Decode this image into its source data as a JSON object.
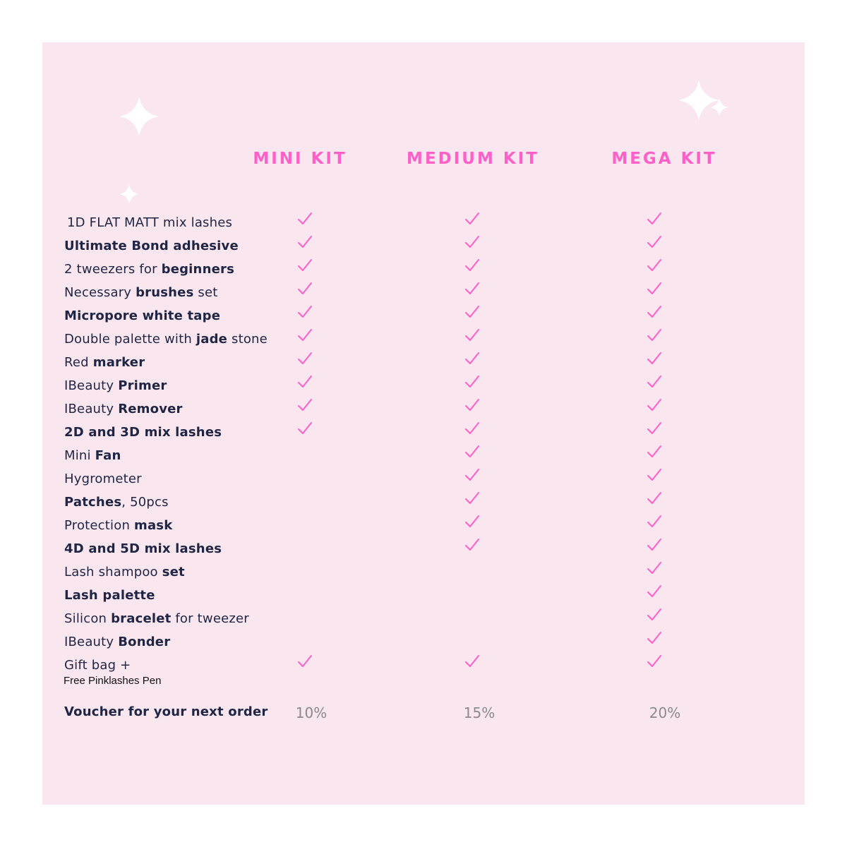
{
  "colors": {
    "background": "#fae6ee",
    "accent": "#ff5fc8",
    "text": "#1f2545",
    "percent": "#8a8a8a"
  },
  "columns": [
    "MINI KIT",
    "MEDIUM KIT",
    "MEGA KIT"
  ],
  "rows": [
    {
      "segments": [
        {
          "text": "1D FLAT MATT mix lashes",
          "bold": false
        }
      ],
      "checks": [
        true,
        true,
        true
      ]
    },
    {
      "segments": [
        {
          "text": "Ultimate Bond adhesive",
          "bold": true
        }
      ],
      "checks": [
        true,
        true,
        true
      ]
    },
    {
      "segments": [
        {
          "text": "2 tweezers for ",
          "bold": false
        },
        {
          "text": "beginners",
          "bold": true
        }
      ],
      "checks": [
        true,
        true,
        true
      ]
    },
    {
      "segments": [
        {
          "text": "Necessary ",
          "bold": false
        },
        {
          "text": "brushes",
          "bold": true
        },
        {
          "text": " set",
          "bold": false
        }
      ],
      "checks": [
        true,
        true,
        true
      ]
    },
    {
      "segments": [
        {
          "text": "Micropore white tape",
          "bold": true
        }
      ],
      "checks": [
        true,
        true,
        true
      ]
    },
    {
      "segments": [
        {
          "text": "Double palette with ",
          "bold": false
        },
        {
          "text": "jade",
          "bold": true
        },
        {
          "text": " stone",
          "bold": false
        }
      ],
      "checks": [
        true,
        true,
        true
      ]
    },
    {
      "segments": [
        {
          "text": "Red ",
          "bold": false
        },
        {
          "text": "marker",
          "bold": true
        }
      ],
      "checks": [
        true,
        true,
        true
      ]
    },
    {
      "segments": [
        {
          "text": "IBeauty ",
          "bold": false
        },
        {
          "text": "Primer",
          "bold": true
        }
      ],
      "checks": [
        true,
        true,
        true
      ]
    },
    {
      "segments": [
        {
          "text": "IBeauty ",
          "bold": false
        },
        {
          "text": "Remover",
          "bold": true
        }
      ],
      "checks": [
        true,
        true,
        true
      ]
    },
    {
      "segments": [
        {
          "text": "2D and 3D mix lashes",
          "bold": true
        }
      ],
      "checks": [
        true,
        true,
        true
      ]
    },
    {
      "segments": [
        {
          "text": "Mini ",
          "bold": false
        },
        {
          "text": "Fan",
          "bold": true
        }
      ],
      "checks": [
        false,
        true,
        true
      ]
    },
    {
      "segments": [
        {
          "text": "Hygrometer",
          "bold": false
        }
      ],
      "checks": [
        false,
        true,
        true
      ]
    },
    {
      "segments": [
        {
          "text": "Patches",
          "bold": true
        },
        {
          "text": ", 50pcs",
          "bold": false
        }
      ],
      "checks": [
        false,
        true,
        true
      ]
    },
    {
      "segments": [
        {
          "text": "Protection ",
          "bold": false
        },
        {
          "text": "mask",
          "bold": true
        }
      ],
      "checks": [
        false,
        true,
        true
      ]
    },
    {
      "segments": [
        {
          "text": "4D and 5D mix lashes",
          "bold": true
        }
      ],
      "checks": [
        false,
        true,
        true
      ]
    },
    {
      "segments": [
        {
          "text": "Lash shampoo ",
          "bold": false
        },
        {
          "text": "set",
          "bold": true
        }
      ],
      "checks": [
        false,
        false,
        true
      ]
    },
    {
      "segments": [
        {
          "text": "Lash palette",
          "bold": true
        }
      ],
      "checks": [
        false,
        false,
        true
      ]
    },
    {
      "segments": [
        {
          "text": "Silicon ",
          "bold": false
        },
        {
          "text": "bracelet",
          "bold": true
        },
        {
          "text": " for tweezer",
          "bold": false
        }
      ],
      "checks": [
        false,
        false,
        true
      ]
    },
    {
      "segments": [
        {
          "text": "IBeauty ",
          "bold": false
        },
        {
          "text": "Bonder",
          "bold": true
        }
      ],
      "checks": [
        false,
        false,
        true
      ]
    },
    {
      "segments": [
        {
          "text": "Gift bag  +",
          "bold": false
        }
      ],
      "subtext": "Free Pinklashes Pen",
      "checks": [
        true,
        true,
        true
      ]
    }
  ],
  "voucher": {
    "label": "Voucher for your next order",
    "values": [
      "10%",
      "15%",
      "20%"
    ]
  }
}
